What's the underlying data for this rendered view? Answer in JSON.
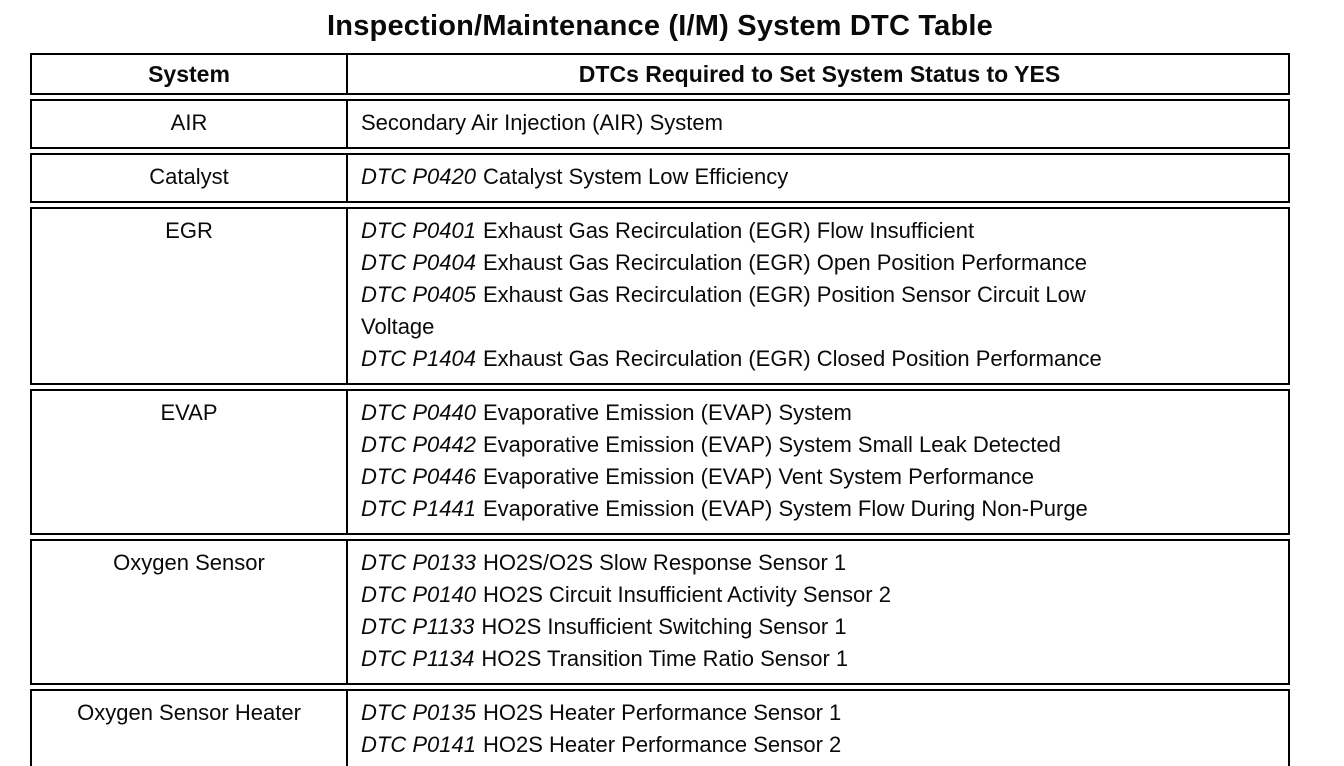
{
  "title": "Inspection/Maintenance (I/M) System DTC Table",
  "colors": {
    "background": "#ffffff",
    "border": "#000000",
    "text": "#0a0a0a"
  },
  "table": {
    "headers": [
      "System",
      "DTCs Required to Set System Status to YES"
    ],
    "rows": [
      {
        "system": "AIR",
        "dtcs": [
          {
            "code": "",
            "text": "Secondary Air Injection (AIR) System"
          }
        ]
      },
      {
        "system": "Catalyst",
        "dtcs": [
          {
            "code": "DTC P0420",
            "text": "Catalyst System Low Efficiency"
          }
        ]
      },
      {
        "system": "EGR",
        "dtcs": [
          {
            "code": "DTC P0401",
            "text": "Exhaust Gas Recirculation (EGR) Flow Insufficient"
          },
          {
            "code": "DTC P0404",
            "text": "Exhaust Gas Recirculation (EGR) Open Position Performance"
          },
          {
            "code": "DTC P0405",
            "text": "Exhaust Gas Recirculation (EGR) Position Sensor Circuit Low\nVoltage"
          },
          {
            "code": "DTC P1404",
            "text": "Exhaust Gas Recirculation (EGR) Closed Position Performance"
          }
        ]
      },
      {
        "system": "EVAP",
        "dtcs": [
          {
            "code": "DTC P0440",
            "text": "Evaporative Emission (EVAP) System"
          },
          {
            "code": "DTC P0442",
            "text": "Evaporative Emission (EVAP) System Small Leak Detected"
          },
          {
            "code": "DTC P0446",
            "text": "Evaporative Emission (EVAP) Vent System Performance"
          },
          {
            "code": "DTC P1441",
            "text": "Evaporative Emission (EVAP) System Flow During Non-Purge"
          }
        ]
      },
      {
        "system": "Oxygen Sensor",
        "dtcs": [
          {
            "code": "DTC P0133",
            "text": "HO2S/O2S Slow Response Sensor 1"
          },
          {
            "code": "DTC P0140",
            "text": "HO2S Circuit Insufficient Activity Sensor 2"
          },
          {
            "code": "DTC P1133",
            "text": "HO2S Insufficient Switching Sensor 1"
          },
          {
            "code": "DTC P1134",
            "text": "HO2S Transition Time Ratio Sensor 1"
          }
        ]
      },
      {
        "system": "Oxygen Sensor Heater",
        "dtcs": [
          {
            "code": "DTC P0135",
            "text": "HO2S Heater Performance Sensor 1"
          },
          {
            "code": "DTC P0141",
            "text": "HO2S Heater Performance Sensor 2"
          }
        ]
      }
    ]
  }
}
